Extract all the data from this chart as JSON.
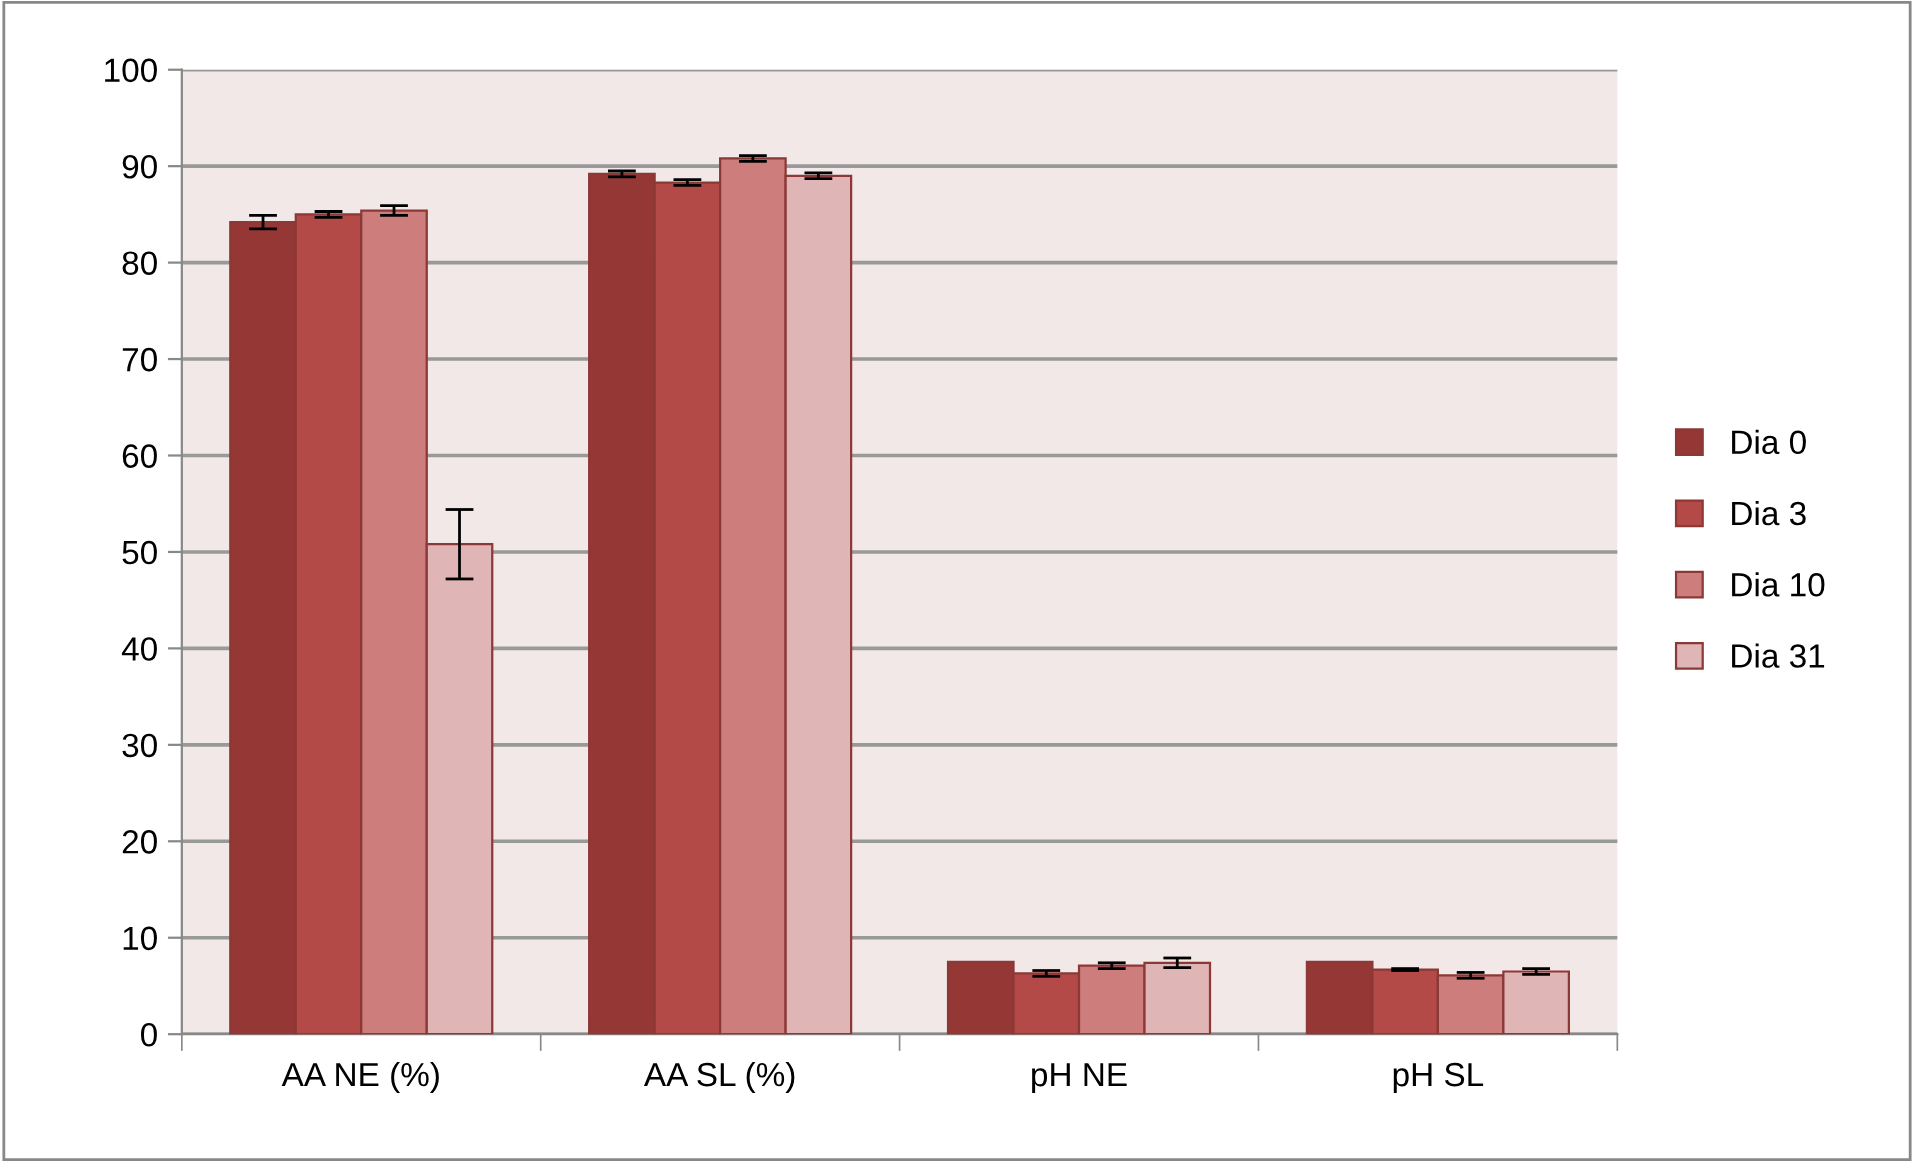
{
  "chart_data": {
    "type": "bar",
    "categories": [
      "AA NE (%)",
      "AA SL (%)",
      "pH NE",
      "pH SL"
    ],
    "series": [
      {
        "name": "Dia 0",
        "color": "#953735",
        "values": [
          84.2,
          89.2,
          7.5,
          7.5
        ],
        "errors": [
          0.7,
          0.3,
          null,
          null
        ]
      },
      {
        "name": "Dia 3",
        "color": "#b34a48",
        "values": [
          85.0,
          88.3,
          6.3,
          6.7
        ],
        "errors": [
          0.3,
          0.3,
          0.3,
          0.1
        ]
      },
      {
        "name": "Dia 10",
        "color": "#cc7d7c",
        "values": [
          85.4,
          90.8,
          7.1,
          6.1
        ],
        "errors": [
          0.5,
          0.3,
          0.3,
          0.3
        ]
      },
      {
        "name": "Dia 31",
        "color": "#dfb5b5",
        "values": [
          50.8,
          89.0,
          7.4,
          6.5
        ],
        "errors": [
          3.6,
          0.3,
          0.5,
          0.3
        ]
      }
    ],
    "ylim": [
      0,
      100
    ],
    "yticks": [
      0,
      10,
      20,
      30,
      40,
      50,
      60,
      70,
      80,
      90,
      100
    ],
    "grid": "y",
    "legend": "right"
  }
}
